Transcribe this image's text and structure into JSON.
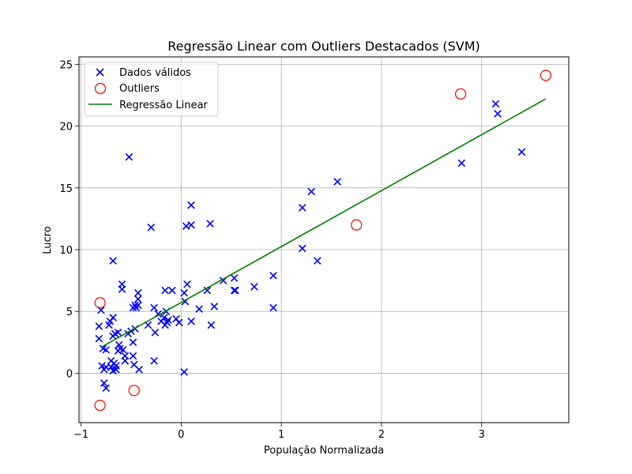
{
  "chart_data": {
    "type": "scatter",
    "title": "Regressão Linear com Outliers Destacados (SVM)",
    "xlabel": "População Normalizada",
    "ylabel": "Lucro",
    "xlim": [
      -1.02,
      3.87
    ],
    "ylim": [
      -4.0,
      25.6
    ],
    "xticks": [
      -1,
      0,
      1,
      2,
      3
    ],
    "yticks": [
      0,
      5,
      10,
      15,
      20,
      25
    ],
    "grid": true,
    "legend_position": "top-left",
    "colors": {
      "valid": "#0000ff",
      "outlier": "#ff0000",
      "regression": "#008000",
      "grid": "#b0b0b0"
    },
    "series": [
      {
        "name": "Dados válidos",
        "marker": "x",
        "points": [
          [
            -0.52,
            17.5
          ],
          [
            -0.68,
            9.1
          ],
          [
            -0.3,
            11.8
          ],
          [
            0.05,
            11.9
          ],
          [
            0.1,
            12.0
          ],
          [
            0.29,
            12.1
          ],
          [
            0.1,
            13.6
          ],
          [
            -0.59,
            7.2
          ],
          [
            -0.59,
            6.8
          ],
          [
            -0.43,
            6.5
          ],
          [
            -0.43,
            6.0
          ],
          [
            -0.16,
            6.7
          ],
          [
            -0.09,
            6.7
          ],
          [
            0.03,
            6.5
          ],
          [
            0.06,
            7.2
          ],
          [
            0.26,
            6.7
          ],
          [
            0.42,
            7.5
          ],
          [
            0.53,
            6.7
          ],
          [
            0.53,
            7.7
          ],
          [
            0.54,
            6.7
          ],
          [
            0.73,
            7.0
          ],
          [
            0.92,
            7.9
          ],
          [
            -0.46,
            5.5
          ],
          [
            -0.45,
            5.3
          ],
          [
            -0.48,
            5.3
          ],
          [
            -0.43,
            5.5
          ],
          [
            -0.27,
            5.3
          ],
          [
            -0.23,
            4.8
          ],
          [
            -0.15,
            5.0
          ],
          [
            0.04,
            5.8
          ],
          [
            0.18,
            5.2
          ],
          [
            0.33,
            5.4
          ],
          [
            0.92,
            5.3
          ],
          [
            -0.8,
            5.1
          ],
          [
            -0.82,
            3.8
          ],
          [
            -0.72,
            3.9
          ],
          [
            -0.68,
            4.5
          ],
          [
            -0.71,
            4.2
          ],
          [
            -0.66,
            3.2
          ],
          [
            -0.63,
            3.3
          ],
          [
            -0.53,
            3.2
          ],
          [
            -0.5,
            3.4
          ],
          [
            -0.46,
            3.6
          ],
          [
            -0.33,
            3.9
          ],
          [
            -0.26,
            3.3
          ],
          [
            -0.2,
            4.2
          ],
          [
            -0.17,
            4.5
          ],
          [
            -0.16,
            3.9
          ],
          [
            -0.14,
            4.1
          ],
          [
            -0.13,
            4.3
          ],
          [
            -0.05,
            4.4
          ],
          [
            -0.02,
            4.1
          ],
          [
            0.1,
            4.2
          ],
          [
            0.3,
            3.9
          ],
          [
            -0.82,
            2.8
          ],
          [
            -0.78,
            2.0
          ],
          [
            -0.75,
            1.9
          ],
          [
            -0.68,
            3.0
          ],
          [
            -0.62,
            2.3
          ],
          [
            -0.63,
            1.8
          ],
          [
            -0.61,
            2.0
          ],
          [
            -0.58,
            1.9
          ],
          [
            -0.56,
            1.4
          ],
          [
            -0.56,
            1.0
          ],
          [
            -0.48,
            2.5
          ],
          [
            -0.48,
            1.4
          ],
          [
            -0.75,
            0.5
          ],
          [
            -0.7,
            0.5
          ],
          [
            -0.7,
            1.0
          ],
          [
            -0.67,
            0.8
          ],
          [
            -0.65,
            0.6
          ],
          [
            -0.68,
            0.2
          ],
          [
            -0.65,
            0.3
          ],
          [
            -0.47,
            0.7
          ],
          [
            -0.42,
            0.3
          ],
          [
            -0.27,
            1.0
          ],
          [
            0.03,
            0.1
          ],
          [
            -0.79,
            0.6
          ],
          [
            -0.77,
            0.3
          ],
          [
            -0.77,
            -0.8
          ],
          [
            -0.75,
            -1.2
          ],
          [
            1.21,
            13.4
          ],
          [
            1.3,
            14.7
          ],
          [
            1.56,
            15.5
          ],
          [
            1.21,
            10.1
          ],
          [
            1.36,
            9.1
          ],
          [
            2.8,
            17.0
          ],
          [
            3.14,
            21.8
          ],
          [
            3.16,
            21.0
          ],
          [
            3.4,
            17.9
          ]
        ]
      },
      {
        "name": "Outliers",
        "marker": "circle",
        "points": [
          [
            -0.81,
            5.7
          ],
          [
            -0.81,
            -2.6
          ],
          [
            -0.47,
            -1.4
          ],
          [
            1.75,
            12.0
          ],
          [
            2.79,
            22.6
          ],
          [
            3.64,
            24.1
          ]
        ]
      },
      {
        "name": "Regressão Linear",
        "marker": "line",
        "points": [
          [
            -0.8,
            2.1
          ],
          [
            3.64,
            22.2
          ]
        ]
      }
    ]
  }
}
